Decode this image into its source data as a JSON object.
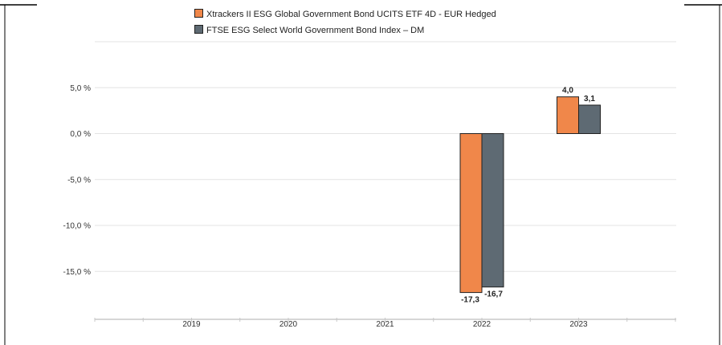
{
  "chart_data": {
    "type": "bar",
    "categories": [
      "2019",
      "2020",
      "2021",
      "2022",
      "2023"
    ],
    "series": [
      {
        "name": "Xtrackers II ESG Global Government Bond UCITS ETF 4D - EUR Hedged",
        "color": "#f0874a",
        "values": [
          null,
          null,
          null,
          -17.3,
          4.0
        ],
        "labels": [
          "",
          "",
          "",
          "-17,3",
          "4,0"
        ]
      },
      {
        "name": "FTSE ESG Select World Government Bond Index – DM",
        "color": "#5e6a73",
        "values": [
          null,
          null,
          null,
          -16.7,
          3.1
        ],
        "labels": [
          "",
          "",
          "",
          "-16,7",
          "3,1"
        ]
      }
    ],
    "yticks": [
      5,
      0,
      -5,
      -10,
      -15
    ],
    "ytick_labels": [
      "5,0 %",
      "0,0 %",
      "-5,0 %",
      "-10,0 %",
      "-15,0 %"
    ],
    "ylim": [
      -20,
      10
    ],
    "grid": true,
    "legend": "top-left"
  }
}
